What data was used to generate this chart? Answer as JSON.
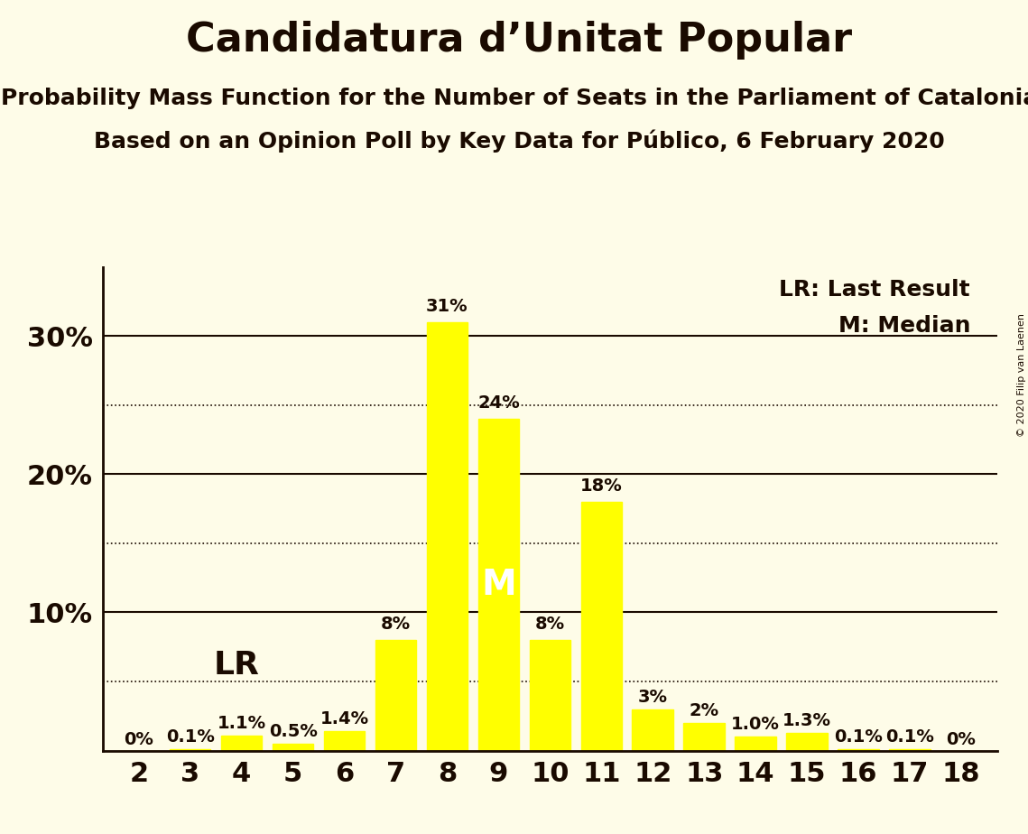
{
  "title": "Candidatura d’Unitat Popular",
  "subtitle1": "Probability Mass Function for the Number of Seats in the Parliament of Catalonia",
  "subtitle2": "Based on an Opinion Poll by Key Data for Público, 6 February 2020",
  "copyright": "© 2020 Filip van Laenen",
  "seats": [
    2,
    3,
    4,
    5,
    6,
    7,
    8,
    9,
    10,
    11,
    12,
    13,
    14,
    15,
    16,
    17,
    18
  ],
  "probabilities": [
    0.0,
    0.1,
    1.1,
    0.5,
    1.4,
    8.0,
    31.0,
    24.0,
    8.0,
    18.0,
    3.0,
    2.0,
    1.0,
    1.3,
    0.1,
    0.1,
    0.0
  ],
  "labels": [
    "0%",
    "0.1%",
    "1.1%",
    "0.5%",
    "1.4%",
    "8%",
    "31%",
    "24%",
    "8%",
    "18%",
    "3%",
    "2%",
    "1.0%",
    "1.3%",
    "0.1%",
    "0.1%",
    "0%"
  ],
  "bar_color": "#ffff00",
  "background_color": "#fefce8",
  "text_color": "#1a0a00",
  "lr_seat": 4,
  "median_seat": 9,
  "ylim": [
    0,
    35
  ],
  "yticks": [
    0,
    10,
    20,
    30
  ],
  "ytick_labels": [
    "",
    "10%",
    "20%",
    "30%"
  ],
  "dotted_gridlines": [
    5,
    15,
    25
  ],
  "solid_gridlines": [
    10,
    20,
    30
  ],
  "legend_text_lr": "LR: Last Result",
  "legend_text_m": "M: Median",
  "title_fontsize": 32,
  "subtitle_fontsize": 18,
  "axis_fontsize": 22,
  "bar_label_fontsize": 14,
  "annotation_fontsize": 28,
  "lr_label_fontsize": 26
}
